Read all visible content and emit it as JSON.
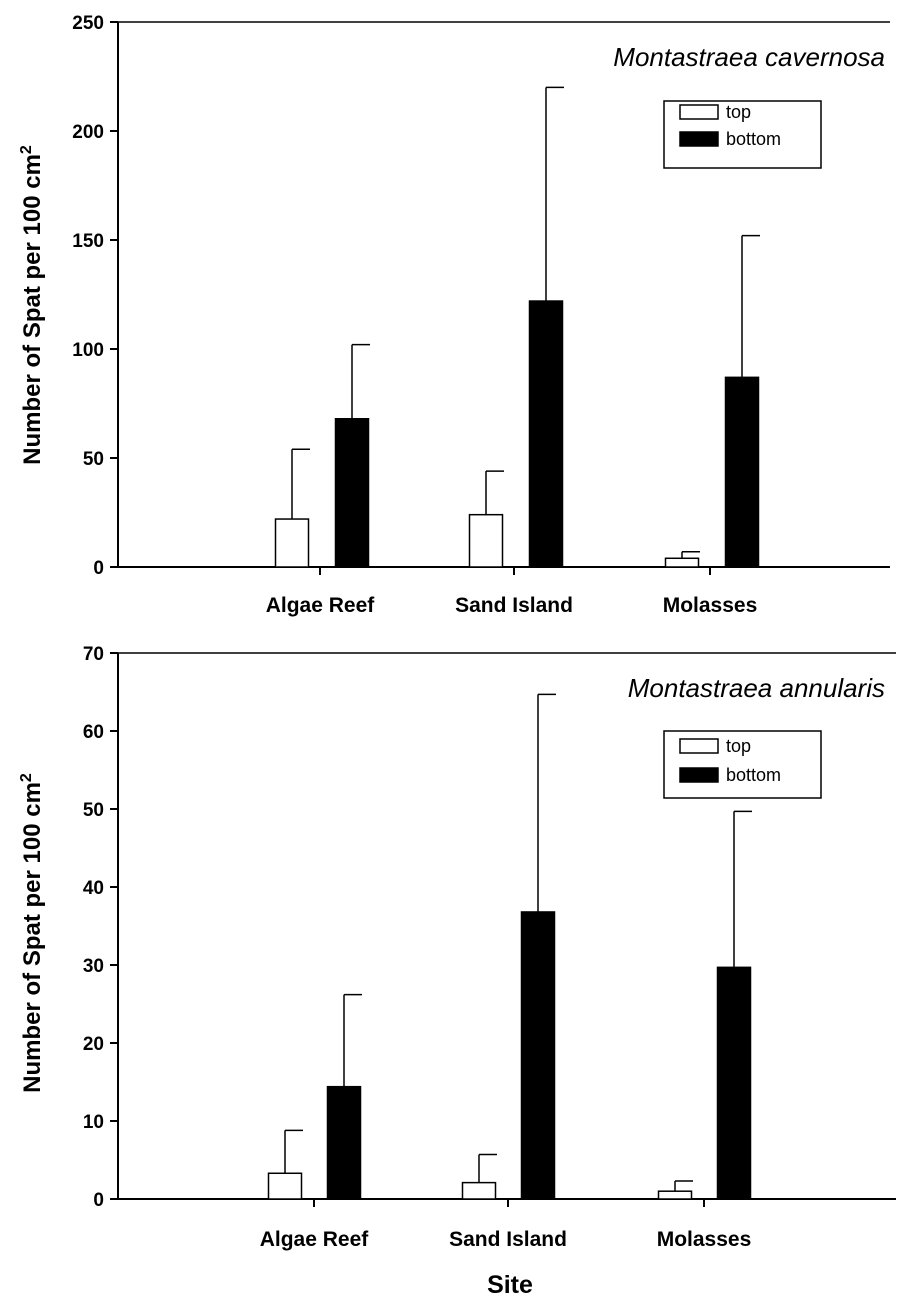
{
  "chart_data": [
    {
      "type": "bar",
      "title": "Montastraea cavernosa",
      "xlabel": "",
      "ylabel_main": "Number of Spat per 100 cm",
      "ylabel_sup": "2",
      "categories": [
        "Algae Reef",
        "Sand Island",
        "Molasses"
      ],
      "series": [
        {
          "name": "top",
          "values": [
            22,
            24,
            4
          ],
          "errors": [
            32,
            20,
            3
          ],
          "color": "#ffffff"
        },
        {
          "name": "bottom",
          "values": [
            68,
            122,
            87
          ],
          "errors": [
            34,
            98,
            65
          ],
          "color": "#000000"
        }
      ],
      "ylim": [
        0,
        250
      ],
      "yticks": [
        0,
        50,
        100,
        150,
        200,
        250
      ],
      "legend_position": "top-right",
      "grid": false
    },
    {
      "type": "bar",
      "title": "Montastraea annularis",
      "xlabel": "Site",
      "ylabel_main": "Number of Spat per 100 cm",
      "ylabel_sup": "2",
      "categories": [
        "Algae Reef",
        "Sand Island",
        "Molasses"
      ],
      "series": [
        {
          "name": "top",
          "values": [
            3.3,
            2.1,
            1.0
          ],
          "errors": [
            5.5,
            3.6,
            1.3
          ],
          "color": "#ffffff"
        },
        {
          "name": "bottom",
          "values": [
            14.4,
            36.8,
            29.7
          ],
          "errors": [
            11.8,
            27.9,
            20.0
          ],
          "color": "#000000"
        }
      ],
      "ylim": [
        0,
        70
      ],
      "yticks": [
        0,
        10,
        20,
        30,
        40,
        50,
        60,
        70
      ],
      "legend_position": "top-right",
      "grid": false
    }
  ]
}
